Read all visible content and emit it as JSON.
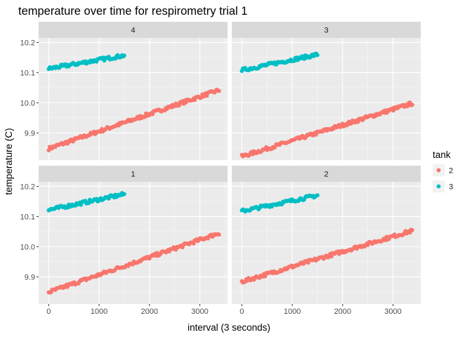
{
  "chart_data": {
    "type": "scatter",
    "title": "temperature over time for respirometry trial 1",
    "xlabel": "interval (3 seconds)",
    "ylabel": "temperature (C)",
    "xlim": [
      -200,
      3550
    ],
    "ylim": [
      9.81,
      10.215
    ],
    "x_ticks": [
      0,
      1000,
      2000,
      3000
    ],
    "y_ticks": [
      9.9,
      10.0,
      10.1,
      10.2
    ],
    "grid": true,
    "legend": {
      "title": "tank",
      "position": "right",
      "entries": [
        {
          "label": "2",
          "color": "#F8766D"
        },
        {
          "label": "3",
          "color": "#00BFC4"
        }
      ]
    },
    "facets": [
      {
        "label": "4",
        "series": [
          {
            "tank": "2",
            "color": "#F8766D",
            "x_start": 0,
            "x_end": 3380,
            "y_start": 9.848,
            "y_end": 10.042
          },
          {
            "tank": "3",
            "color": "#00BFC4",
            "x_start": 0,
            "x_end": 1500,
            "y_start": 10.113,
            "y_end": 10.157
          }
        ]
      },
      {
        "label": "3",
        "series": [
          {
            "tank": "2",
            "color": "#F8766D",
            "x_start": 0,
            "x_end": 3380,
            "y_start": 9.822,
            "y_end": 9.998
          },
          {
            "tank": "3",
            "color": "#00BFC4",
            "x_start": 0,
            "x_end": 1500,
            "y_start": 10.108,
            "y_end": 10.16
          }
        ]
      },
      {
        "label": "1",
        "series": [
          {
            "tank": "2",
            "color": "#F8766D",
            "x_start": 0,
            "x_end": 3380,
            "y_start": 9.849,
            "y_end": 10.045
          },
          {
            "tank": "3",
            "color": "#00BFC4",
            "x_start": 0,
            "x_end": 1500,
            "y_start": 10.122,
            "y_end": 10.174
          }
        ]
      },
      {
        "label": "2",
        "series": [
          {
            "tank": "2",
            "color": "#F8766D",
            "x_start": 0,
            "x_end": 3380,
            "y_start": 9.884,
            "y_end": 10.053
          },
          {
            "tank": "3",
            "color": "#00BFC4",
            "x_start": 0,
            "x_end": 1500,
            "y_start": 10.118,
            "y_end": 10.17
          }
        ]
      }
    ]
  }
}
